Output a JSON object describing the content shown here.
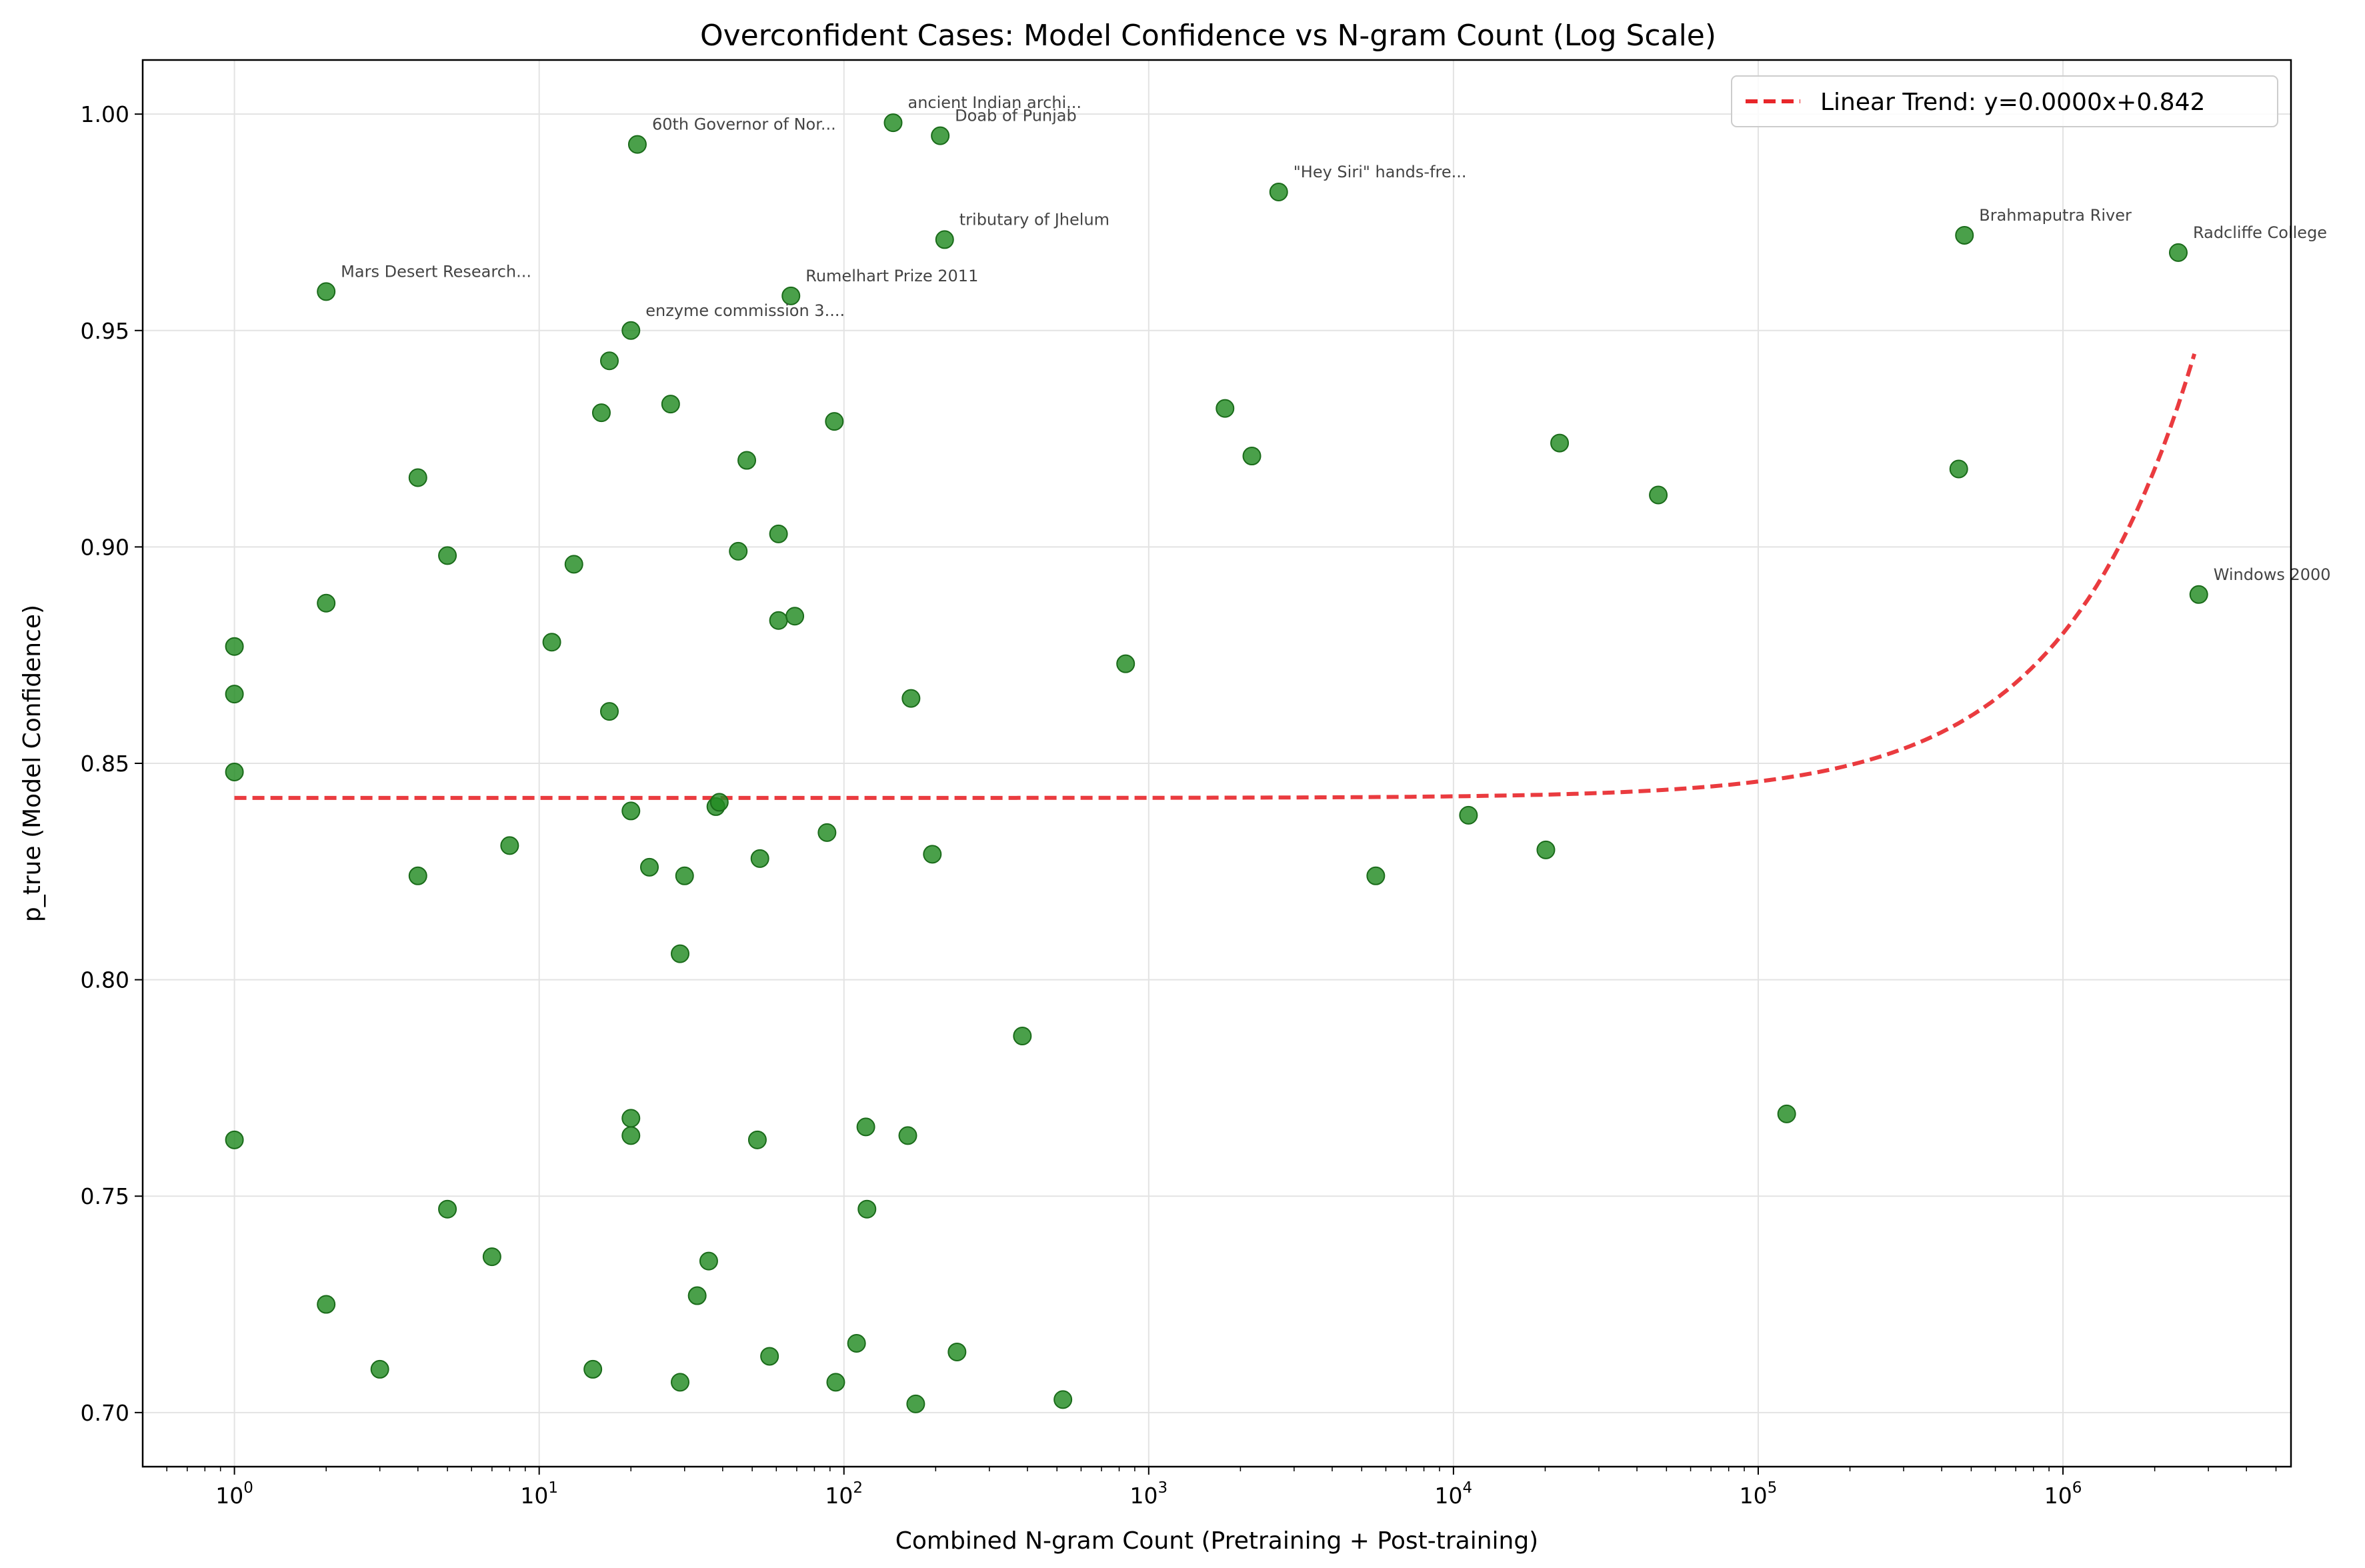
{
  "chart_data": {
    "type": "scatter",
    "title": "Overconfident Cases: Model Confidence vs N-gram Count (Log Scale)",
    "xlabel": "Combined N-gram Count (Pretraining + Post-training)",
    "ylabel": "p_true (Model Confidence)",
    "xscale": "log",
    "xlim": [
      0.5,
      5600000
    ],
    "ylim": [
      0.6875,
      1.0125
    ],
    "grid": true,
    "legend_position": "top-right",
    "x_ticks": [
      {
        "base": "10",
        "exp": "0",
        "value": 1
      },
      {
        "base": "10",
        "exp": "1",
        "value": 10
      },
      {
        "base": "10",
        "exp": "2",
        "value": 100
      },
      {
        "base": "10",
        "exp": "3",
        "value": 1000
      },
      {
        "base": "10",
        "exp": "4",
        "value": 10000
      },
      {
        "base": "10",
        "exp": "5",
        "value": 100000
      },
      {
        "base": "10",
        "exp": "6",
        "value": 1000000
      }
    ],
    "y_ticks": [
      "0.70",
      "0.75",
      "0.80",
      "0.85",
      "0.90",
      "0.95",
      "1.00"
    ],
    "colors": {
      "points": "#228b22",
      "trend": "#e8262a",
      "grid": "#e3e3e3"
    },
    "trend": {
      "name": "Linear Trend: y=0.0000x+0.842",
      "slope": 3.8e-08,
      "intercept": 0.842,
      "x_range": [
        1,
        2700000
      ]
    },
    "points": [
      {
        "x": 1,
        "y": 0.877
      },
      {
        "x": 1,
        "y": 0.866
      },
      {
        "x": 1,
        "y": 0.848
      },
      {
        "x": 1,
        "y": 0.763
      },
      {
        "x": 2,
        "y": 0.959,
        "label": "Mars Desert Research..."
      },
      {
        "x": 2,
        "y": 0.887
      },
      {
        "x": 2,
        "y": 0.725
      },
      {
        "x": 3,
        "y": 0.71
      },
      {
        "x": 4,
        "y": 0.916
      },
      {
        "x": 4,
        "y": 0.824
      },
      {
        "x": 5,
        "y": 0.898
      },
      {
        "x": 5,
        "y": 0.747
      },
      {
        "x": 7,
        "y": 0.736
      },
      {
        "x": 8,
        "y": 0.831
      },
      {
        "x": 11,
        "y": 0.878
      },
      {
        "x": 13,
        "y": 0.896
      },
      {
        "x": 15,
        "y": 0.71
      },
      {
        "x": 16,
        "y": 0.931
      },
      {
        "x": 17,
        "y": 0.943
      },
      {
        "x": 17,
        "y": 0.862
      },
      {
        "x": 20,
        "y": 0.95,
        "label": "enzyme commission 3...."
      },
      {
        "x": 20,
        "y": 0.839
      },
      {
        "x": 20,
        "y": 0.768
      },
      {
        "x": 20,
        "y": 0.764
      },
      {
        "x": 21,
        "y": 0.993,
        "label": "60th Governor of Nor..."
      },
      {
        "x": 23,
        "y": 0.826
      },
      {
        "x": 27,
        "y": 0.933
      },
      {
        "x": 29,
        "y": 0.806
      },
      {
        "x": 29,
        "y": 0.707
      },
      {
        "x": 30,
        "y": 0.824
      },
      {
        "x": 33,
        "y": 0.727
      },
      {
        "x": 36,
        "y": 0.735
      },
      {
        "x": 38,
        "y": 0.84
      },
      {
        "x": 39,
        "y": 0.841
      },
      {
        "x": 45,
        "y": 0.899
      },
      {
        "x": 48,
        "y": 0.92
      },
      {
        "x": 52,
        "y": 0.763
      },
      {
        "x": 53,
        "y": 0.828
      },
      {
        "x": 57,
        "y": 0.713
      },
      {
        "x": 61,
        "y": 0.903
      },
      {
        "x": 61,
        "y": 0.883
      },
      {
        "x": 67,
        "y": 0.958,
        "label": "Rumelhart Prize 2011"
      },
      {
        "x": 69,
        "y": 0.884
      },
      {
        "x": 88,
        "y": 0.834
      },
      {
        "x": 93,
        "y": 0.929
      },
      {
        "x": 94,
        "y": 0.707
      },
      {
        "x": 110,
        "y": 0.716
      },
      {
        "x": 118,
        "y": 0.766
      },
      {
        "x": 119,
        "y": 0.747
      },
      {
        "x": 145,
        "y": 0.998,
        "label": "ancient Indian archi..."
      },
      {
        "x": 162,
        "y": 0.764
      },
      {
        "x": 166,
        "y": 0.865
      },
      {
        "x": 172,
        "y": 0.702
      },
      {
        "x": 195,
        "y": 0.829
      },
      {
        "x": 207,
        "y": 0.995,
        "label": "Doab of Punjab"
      },
      {
        "x": 214,
        "y": 0.971,
        "label": "tributary of Jhelum"
      },
      {
        "x": 235,
        "y": 0.714
      },
      {
        "x": 385,
        "y": 0.787
      },
      {
        "x": 523,
        "y": 0.703
      },
      {
        "x": 840,
        "y": 0.873
      },
      {
        "x": 1780,
        "y": 0.932
      },
      {
        "x": 2180,
        "y": 0.921
      },
      {
        "x": 2670,
        "y": 0.982,
        "label": "\"Hey Siri\" hands-fre..."
      },
      {
        "x": 5560,
        "y": 0.824
      },
      {
        "x": 11200,
        "y": 0.838
      },
      {
        "x": 20100,
        "y": 0.83
      },
      {
        "x": 22300,
        "y": 0.924
      },
      {
        "x": 47000,
        "y": 0.912
      },
      {
        "x": 124000,
        "y": 0.769
      },
      {
        "x": 455000,
        "y": 0.918
      },
      {
        "x": 475000,
        "y": 0.972,
        "label": "Brahmaputra River"
      },
      {
        "x": 2390000,
        "y": 0.968,
        "label": "Radcliffe College"
      },
      {
        "x": 2790000,
        "y": 0.889,
        "label": "Windows 2000"
      }
    ]
  }
}
